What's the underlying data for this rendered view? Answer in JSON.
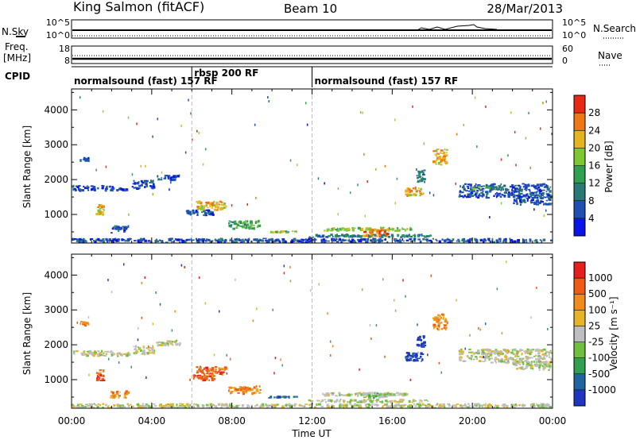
{
  "header": {
    "station": "King Salmon (fitACF)",
    "beam": "Beam 10",
    "date": "28/Mar/2013"
  },
  "summary": {
    "nsky_label": "N.Sky",
    "nsky_ticks": [
      "10^5",
      "10^0"
    ],
    "nsearch_label": "N.Search",
    "nsearch_ticks": [
      "10^5",
      "10^0"
    ],
    "freq_label": "Freq.",
    "freq_unit": "[MHz]",
    "freq_ticks": [
      "18",
      "8"
    ],
    "nave_label": "Nave",
    "nave_ticks": [
      "60",
      "0"
    ],
    "cpid_label": "CPID",
    "cpid_segments": [
      {
        "label": "normalsound (fast) 157 RF",
        "start_h": 0,
        "end_h": 6
      },
      {
        "label": "rbsp 200 RF",
        "start_h": 6,
        "end_h": 12
      },
      {
        "label": "normalsound (fast) 157 RF",
        "start_h": 12,
        "end_h": 24
      }
    ]
  },
  "axes": {
    "xlabel": "Time UT",
    "x_tick_labels": [
      "00:00",
      "04:00",
      "08:00",
      "12:00",
      "16:00",
      "20:00",
      "00:00"
    ],
    "ylabel": "Slant Range [km]",
    "y_tick_labels": [
      "1000",
      "2000",
      "3000",
      "4000"
    ]
  },
  "power_scale": {
    "label": "Power [dB]",
    "tick_labels": [
      "4",
      "8",
      "12",
      "16",
      "20",
      "24",
      "28"
    ],
    "colors": [
      "#0a14e6",
      "#1e50b4",
      "#287878",
      "#2ea050",
      "#7cc832",
      "#e6b41e",
      "#f07814",
      "#e62814"
    ]
  },
  "velocity_scale": {
    "label": "Velocity [m s⁻¹]",
    "tick_labels": [
      "1000",
      "500",
      "100",
      "25",
      "-25",
      "-100",
      "-500",
      "-1000"
    ],
    "colors": [
      "#2036c0",
      "#1e64a0",
      "#30a050",
      "#70c040",
      "#bebebe",
      "#e6b428",
      "#f08c1e",
      "#f05a14",
      "#e61e1e"
    ]
  },
  "chart_data": [
    {
      "type": "heatmap",
      "name": "power",
      "x_unit": "hours UT",
      "xlim": [
        0,
        24
      ],
      "ylim": [
        180,
        4600
      ],
      "color_scale": "power_scale",
      "blobs": [
        {
          "x": [
            0.0,
            2.2
          ],
          "y": [
            1650,
            1850
          ],
          "level": 1
        },
        {
          "x": [
            2.2,
            3.0
          ],
          "y": [
            1650,
            1800
          ],
          "level": 1
        },
        {
          "x": [
            3.0,
            4.2
          ],
          "y": [
            1700,
            2000
          ],
          "level": 1
        },
        {
          "x": [
            4.2,
            5.5
          ],
          "y": [
            1950,
            2150
          ],
          "level": 1
        },
        {
          "x": [
            1.2,
            1.7
          ],
          "y": [
            950,
            1300
          ],
          "level": 5
        },
        {
          "x": [
            1.9,
            2.9
          ],
          "y": [
            450,
            700
          ],
          "level": 1
        },
        {
          "x": [
            0.4,
            0.9
          ],
          "y": [
            2500,
            2700
          ],
          "level": 1
        },
        {
          "x": [
            5.7,
            7.2
          ],
          "y": [
            950,
            1150
          ],
          "level": 1
        },
        {
          "x": [
            6.2,
            7.8
          ],
          "y": [
            1100,
            1400
          ],
          "level": 5
        },
        {
          "x": [
            7.8,
            9.5
          ],
          "y": [
            550,
            850
          ],
          "level": 3
        },
        {
          "x": [
            9.8,
            11.3
          ],
          "y": [
            450,
            550
          ],
          "level": 4
        },
        {
          "x": [
            11.8,
            18.0
          ],
          "y": [
            320,
            450
          ],
          "level": 2
        },
        {
          "x": [
            12.5,
            17.0
          ],
          "y": [
            500,
            650
          ],
          "level": 4
        },
        {
          "x": [
            14.5,
            16.0
          ],
          "y": [
            350,
            600
          ],
          "level": 6
        },
        {
          "x": [
            16.6,
            17.6
          ],
          "y": [
            1500,
            1800
          ],
          "level": 5
        },
        {
          "x": [
            17.2,
            17.7
          ],
          "y": [
            1900,
            2300
          ],
          "level": 2
        },
        {
          "x": [
            18.0,
            18.8
          ],
          "y": [
            2400,
            2900
          ],
          "level": 5
        },
        {
          "x": [
            19.3,
            24.0
          ],
          "y": [
            1450,
            1900
          ],
          "level": 1
        },
        {
          "x": [
            20.0,
            21.6
          ],
          "y": [
            1700,
            1850
          ],
          "level": 3
        },
        {
          "x": [
            22.0,
            24.0
          ],
          "y": [
            1250,
            1550
          ],
          "level": 1
        },
        {
          "x": [
            0.0,
            24.0
          ],
          "y": [
            180,
            330
          ],
          "level": 1
        }
      ]
    },
    {
      "type": "heatmap",
      "name": "velocity",
      "x_unit": "hours UT",
      "xlim": [
        0,
        24
      ],
      "ylim": [
        180,
        4600
      ],
      "color_scale": "velocity_scale",
      "blobs": [
        {
          "x": [
            0.0,
            2.2
          ],
          "y": [
            1650,
            1850
          ],
          "level": 4
        },
        {
          "x": [
            2.2,
            3.0
          ],
          "y": [
            1650,
            1800
          ],
          "level": 4
        },
        {
          "x": [
            3.0,
            4.2
          ],
          "y": [
            1700,
            2000
          ],
          "level": 4
        },
        {
          "x": [
            4.2,
            5.5
          ],
          "y": [
            1950,
            2150
          ],
          "level": 4
        },
        {
          "x": [
            1.2,
            1.7
          ],
          "y": [
            950,
            1300
          ],
          "level": 7
        },
        {
          "x": [
            1.9,
            2.9
          ],
          "y": [
            450,
            700
          ],
          "level": 6
        },
        {
          "x": [
            0.4,
            0.9
          ],
          "y": [
            2500,
            2700
          ],
          "level": 6
        },
        {
          "x": [
            5.7,
            7.2
          ],
          "y": [
            950,
            1150
          ],
          "level": 7
        },
        {
          "x": [
            6.2,
            7.8
          ],
          "y": [
            1100,
            1400
          ],
          "level": 7
        },
        {
          "x": [
            7.8,
            9.5
          ],
          "y": [
            550,
            850
          ],
          "level": 6
        },
        {
          "x": [
            9.8,
            11.3
          ],
          "y": [
            450,
            550
          ],
          "level": 1
        },
        {
          "x": [
            11.8,
            18.0
          ],
          "y": [
            320,
            450
          ],
          "level": 4
        },
        {
          "x": [
            12.5,
            17.0
          ],
          "y": [
            500,
            650
          ],
          "level": 4
        },
        {
          "x": [
            14.5,
            16.0
          ],
          "y": [
            450,
            650
          ],
          "level": 3
        },
        {
          "x": [
            16.6,
            17.6
          ],
          "y": [
            1500,
            1800
          ],
          "level": 0
        },
        {
          "x": [
            17.2,
            17.7
          ],
          "y": [
            1900,
            2300
          ],
          "level": 0
        },
        {
          "x": [
            18.0,
            18.8
          ],
          "y": [
            2400,
            2900
          ],
          "level": 6
        },
        {
          "x": [
            19.3,
            24.0
          ],
          "y": [
            1450,
            1900
          ],
          "level": 4
        },
        {
          "x": [
            20.0,
            21.6
          ],
          "y": [
            1700,
            1850
          ],
          "level": 4
        },
        {
          "x": [
            22.0,
            24.0
          ],
          "y": [
            1250,
            1550
          ],
          "level": 4
        },
        {
          "x": [
            0.0,
            24.0
          ],
          "y": [
            180,
            330
          ],
          "level": 4
        }
      ]
    }
  ]
}
